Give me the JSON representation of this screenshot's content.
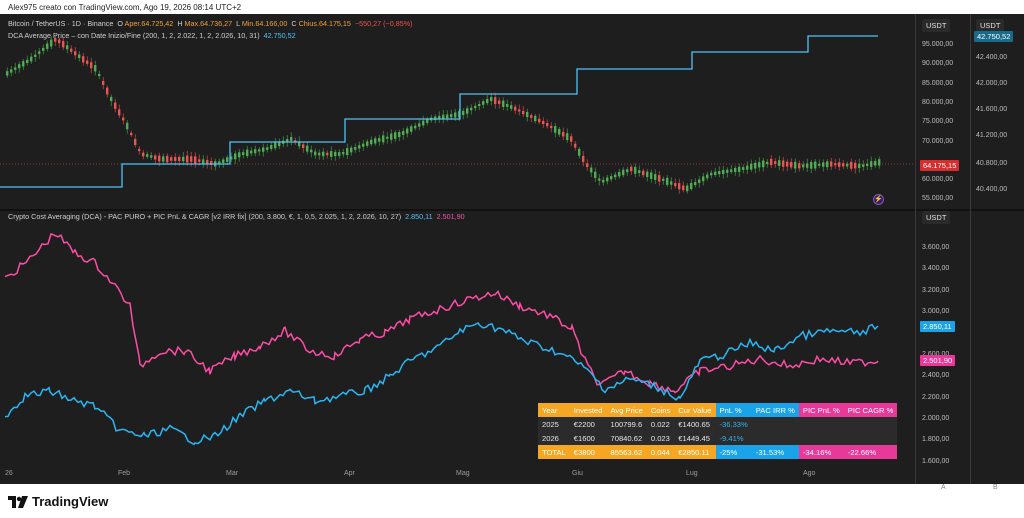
{
  "caption": "Alex975 creato con TradingView.com, Ago 19, 2026 08:14 UTC+2",
  "top_legend": {
    "symbol": "Bitcoin / TetherUS · 1D · Binance",
    "o_label": "O",
    "o_val": "Aper.64.725,42",
    "h_label": "H",
    "h_val": "Max.64.736,27",
    "l_label": "L",
    "l_val": "Min.64.166,00",
    "c_label": "C",
    "c_val": "Chius.64.175,15",
    "change": "−550,27 (−0,85%)",
    "indicator": "DCA Average Price – con Date Inizio/Fine (200, 1, 2, 2.022, 1, 2, 2.026, 10, 31)",
    "indicator_val": "42.750,52"
  },
  "bottom_legend": {
    "indicator": "Crypto Cost Averaging (DCA) - PAC PURO + PIC PnL & CAGR [v2 IRR fix] (200, 3.800, €, 1, 0,5, 2.025, 1, 2, 2.026, 10, 27)",
    "val1": "2.850,11",
    "val2": "2.501,90"
  },
  "currency": "USDT",
  "top_axis_ticks": [
    "95.000,00",
    "90.000,00",
    "85.000,00",
    "80.000,00",
    "75.000,00",
    "70.000,00",
    "60.000,00",
    "55.000,00"
  ],
  "top_axis2_ticks": [
    "42.400,00",
    "42.000,00",
    "41.600,00",
    "41.200,00",
    "40.800,00",
    "40.400,00"
  ],
  "top_price_tag": "64.175,15",
  "top_axis2_tag": "42.750,52",
  "bottom_axis_ticks": [
    "3.600,00",
    "3.400,00",
    "3.200,00",
    "3.000,00",
    "2.600,00",
    "2.400,00",
    "2.200,00",
    "2.000,00",
    "1.800,00",
    "1.600,00"
  ],
  "bottom_tag_blue": "2.850,11",
  "bottom_tag_pink": "2.501,90",
  "months": [
    "26",
    "Feb",
    "Mar",
    "Apr",
    "Mag",
    "Giu",
    "Lug",
    "Ago"
  ],
  "axis_letters": [
    "A",
    "B"
  ],
  "colors": {
    "cyan": "#4fc3f7",
    "pink": "#ff4da6",
    "blue": "#29b6f6",
    "up": "#4caf50",
    "down": "#ef5350"
  },
  "table": {
    "headers": [
      "Year",
      "Invested",
      "Avg Price",
      "Coins",
      "Cur Value",
      "PnL %",
      "PAC IRR %",
      "PIC PnL %",
      "PIC CAGR %"
    ],
    "rows": [
      [
        "2025",
        "€2200",
        "100799.6",
        "0.022",
        "€1400.65",
        "-36.33%",
        "",
        "",
        ""
      ],
      [
        "2026",
        "€1600",
        "70840.62",
        "0.023",
        "€1449.45",
        "-9.41%",
        "",
        "",
        ""
      ]
    ],
    "total": [
      "TOTAL",
      "€3800",
      "85563.62",
      "0.044",
      "€2850.11",
      "-25%",
      "-31.53%",
      "-34.16%",
      "-22.66%"
    ]
  },
  "footer": "TradingView"
}
